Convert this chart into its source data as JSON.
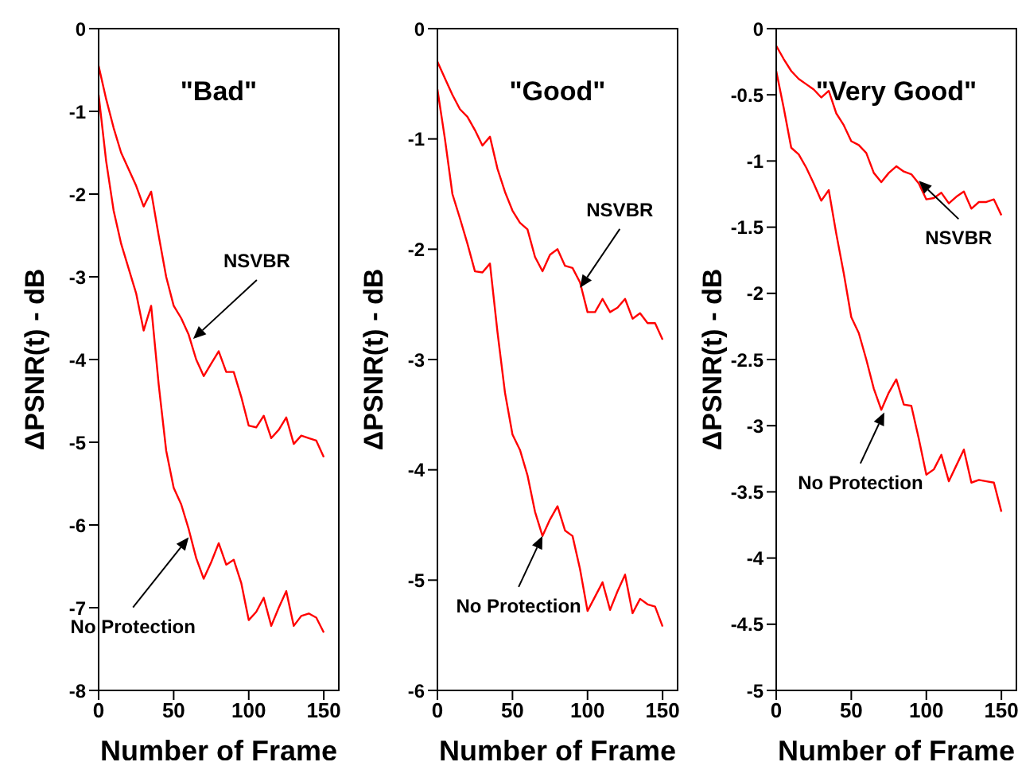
{
  "chart_data": [
    {
      "type": "line",
      "title": "\"Bad\"",
      "xlabel": "Number of Frame",
      "ylabel": "ΔPSNR(t) - dB",
      "xlim": [
        0,
        160
      ],
      "xticks": [
        0,
        50,
        100,
        150
      ],
      "ylim": [
        -8,
        0
      ],
      "yticks": [
        -8,
        -7,
        -6,
        -5,
        -4,
        -3,
        -2,
        -1,
        0
      ],
      "x": [
        0,
        5,
        10,
        15,
        20,
        25,
        30,
        35,
        40,
        45,
        50,
        55,
        60,
        65,
        70,
        75,
        80,
        85,
        90,
        95,
        100,
        105,
        110,
        115,
        120,
        125,
        130,
        135,
        140,
        145,
        150
      ],
      "series": [
        {
          "color": "#ff0000",
          "values": [
            -0.45,
            -0.85,
            -1.2,
            -1.5,
            -1.7,
            -1.9,
            -2.15,
            -1.97,
            -2.5,
            -3.0,
            -3.35,
            -3.5,
            -3.7,
            -4.0,
            -4.2,
            -4.05,
            -3.9,
            -4.15,
            -4.15,
            -4.45,
            -4.8,
            -4.82,
            -4.68,
            -4.95,
            -4.85,
            -4.7,
            -5.02,
            -4.92,
            -4.95,
            -4.98,
            -5.18
          ]
        },
        {
          "color": "#ff0000",
          "values": [
            -0.8,
            -1.6,
            -2.2,
            -2.6,
            -2.9,
            -3.2,
            -3.65,
            -3.35,
            -4.3,
            -5.1,
            -5.55,
            -5.75,
            -6.05,
            -6.4,
            -6.65,
            -6.45,
            -6.22,
            -6.48,
            -6.42,
            -6.7,
            -7.15,
            -7.05,
            -6.88,
            -7.22,
            -7.0,
            -6.8,
            -7.22,
            -7.1,
            -7.07,
            -7.12,
            -7.3
          ]
        }
      ],
      "annotations": [
        {
          "text": "NSVBR",
          "x": 63,
          "y": -3.75
        },
        {
          "text": "No Protection",
          "x": 60,
          "y": -6.15
        }
      ]
    },
    {
      "type": "line",
      "title": "\"Good\"",
      "xlabel": "Number of Frame",
      "ylabel": "ΔPSNR(t) - dB",
      "xlim": [
        0,
        160
      ],
      "xticks": [
        0,
        50,
        100,
        150
      ],
      "ylim": [
        -6,
        0
      ],
      "yticks": [
        -6,
        -5,
        -4,
        -3,
        -2,
        -1,
        0
      ],
      "x": [
        0,
        5,
        10,
        15,
        20,
        25,
        30,
        35,
        40,
        45,
        50,
        55,
        60,
        65,
        70,
        75,
        80,
        85,
        90,
        95,
        100,
        105,
        110,
        115,
        120,
        125,
        130,
        135,
        140,
        145,
        150
      ],
      "series": [
        {
          "color": "#ff0000",
          "values": [
            -0.3,
            -0.45,
            -0.6,
            -0.73,
            -0.8,
            -0.92,
            -1.06,
            -0.98,
            -1.27,
            -1.48,
            -1.65,
            -1.76,
            -1.82,
            -2.07,
            -2.2,
            -2.05,
            -2.0,
            -2.15,
            -2.17,
            -2.3,
            -2.57,
            -2.57,
            -2.45,
            -2.57,
            -2.53,
            -2.45,
            -2.63,
            -2.58,
            -2.67,
            -2.67,
            -2.82
          ]
        },
        {
          "color": "#ff0000",
          "values": [
            -0.55,
            -1.0,
            -1.5,
            -1.72,
            -1.95,
            -2.2,
            -2.21,
            -2.13,
            -2.75,
            -3.3,
            -3.68,
            -3.82,
            -4.05,
            -4.38,
            -4.6,
            -4.45,
            -4.33,
            -4.55,
            -4.6,
            -4.9,
            -5.28,
            -5.15,
            -5.02,
            -5.27,
            -5.1,
            -4.95,
            -5.3,
            -5.17,
            -5.22,
            -5.24,
            -5.42
          ]
        }
      ],
      "annotations": [
        {
          "text": "NSVBR",
          "x": 95,
          "y": -2.35
        },
        {
          "text": "No Protection",
          "x": 70,
          "y": -4.6
        }
      ]
    },
    {
      "type": "line",
      "title": "\"Very Good\"",
      "xlabel": "Number of Frame",
      "ylabel": "ΔPSNR(t) - dB",
      "xlim": [
        0,
        160
      ],
      "xticks": [
        0,
        50,
        100,
        150
      ],
      "ylim": [
        -5,
        0
      ],
      "yticks": [
        -5,
        -4.5,
        -4,
        -3.5,
        -3,
        -2.5,
        -2,
        -1.5,
        -1,
        -0.5,
        0
      ],
      "x": [
        0,
        5,
        10,
        15,
        20,
        25,
        30,
        35,
        40,
        45,
        50,
        55,
        60,
        65,
        70,
        75,
        80,
        85,
        90,
        95,
        100,
        105,
        110,
        115,
        120,
        125,
        130,
        135,
        140,
        145,
        150
      ],
      "series": [
        {
          "color": "#ff0000",
          "values": [
            -0.13,
            -0.23,
            -0.32,
            -0.38,
            -0.42,
            -0.46,
            -0.52,
            -0.47,
            -0.64,
            -0.73,
            -0.85,
            -0.88,
            -0.94,
            -1.09,
            -1.16,
            -1.09,
            -1.04,
            -1.08,
            -1.1,
            -1.17,
            -1.29,
            -1.28,
            -1.24,
            -1.32,
            -1.27,
            -1.23,
            -1.36,
            -1.31,
            -1.31,
            -1.29,
            -1.41
          ]
        },
        {
          "color": "#ff0000",
          "values": [
            -0.32,
            -0.6,
            -0.9,
            -0.95,
            -1.05,
            -1.17,
            -1.3,
            -1.22,
            -1.55,
            -1.85,
            -2.18,
            -2.3,
            -2.5,
            -2.72,
            -2.88,
            -2.75,
            -2.65,
            -2.84,
            -2.85,
            -3.1,
            -3.37,
            -3.33,
            -3.22,
            -3.42,
            -3.3,
            -3.18,
            -3.43,
            -3.41,
            -3.42,
            -3.43,
            -3.65
          ]
        }
      ],
      "annotations": [
        {
          "text": "NSVBR",
          "x": 95,
          "y": -1.15
        },
        {
          "text": "No Protection",
          "x": 72,
          "y": -2.9
        }
      ]
    }
  ]
}
